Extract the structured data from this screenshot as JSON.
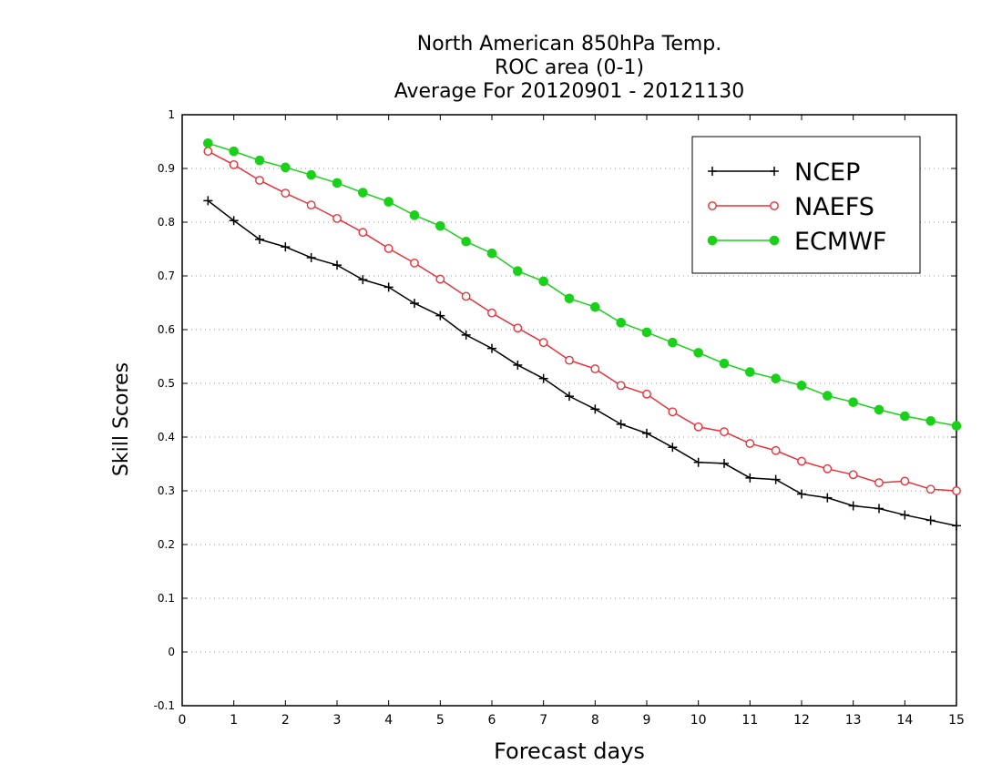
{
  "chart_data": {
    "type": "line",
    "title": [
      "North American 850hPa Temp.",
      "ROC area (0-1)",
      "Average For 20120901 - 20121130"
    ],
    "xlabel": "Forecast days",
    "ylabel": "Skill Scores",
    "xlim": [
      0,
      15
    ],
    "ylim": [
      -0.1,
      1
    ],
    "xticks": [
      "0",
      "1",
      "2",
      "3",
      "4",
      "5",
      "6",
      "7",
      "8",
      "9",
      "10",
      "11",
      "12",
      "13",
      "14",
      "15"
    ],
    "yticks": [
      "-0.1",
      "0",
      "0.1",
      "0.2",
      "0.3",
      "0.4",
      "0.5",
      "0.6",
      "0.7",
      "0.8",
      "0.9",
      "1"
    ],
    "grid": "horizontal dotted",
    "legend_position": "top-right",
    "x": [
      0.5,
      1,
      1.5,
      2,
      2.5,
      3,
      3.5,
      4,
      4.5,
      5,
      5.5,
      6,
      6.5,
      7,
      7.5,
      8,
      8.5,
      9,
      9.5,
      10,
      10.5,
      11,
      11.5,
      12,
      12.5,
      13,
      13.5,
      14,
      14.5,
      15
    ],
    "series": [
      {
        "name": "NCEP",
        "color": "#000000",
        "marker": "plus",
        "values": [
          0.84,
          0.803,
          0.768,
          0.754,
          0.734,
          0.72,
          0.693,
          0.679,
          0.649,
          0.626,
          0.59,
          0.565,
          0.534,
          0.509,
          0.476,
          0.452,
          0.424,
          0.407,
          0.381,
          0.353,
          0.351,
          0.324,
          0.321,
          0.294,
          0.287,
          0.272,
          0.267,
          0.255,
          0.245,
          0.235
        ]
      },
      {
        "name": "NAEFS",
        "color": "#e8313a",
        "marker": "open-circle",
        "values": [
          0.932,
          0.907,
          0.878,
          0.854,
          0.832,
          0.807,
          0.781,
          0.751,
          0.724,
          0.694,
          0.662,
          0.631,
          0.603,
          0.576,
          0.543,
          0.527,
          0.496,
          0.48,
          0.447,
          0.419,
          0.41,
          0.388,
          0.375,
          0.355,
          0.341,
          0.33,
          0.315,
          0.318,
          0.303,
          0.3
        ]
      },
      {
        "name": "ECMWF",
        "color": "#19d119",
        "marker": "filled-circle",
        "values": [
          0.947,
          0.932,
          0.915,
          0.902,
          0.888,
          0.873,
          0.855,
          0.838,
          0.813,
          0.793,
          0.764,
          0.742,
          0.709,
          0.69,
          0.658,
          0.642,
          0.613,
          0.595,
          0.576,
          0.557,
          0.537,
          0.521,
          0.509,
          0.496,
          0.477,
          0.465,
          0.451,
          0.439,
          0.43,
          0.421
        ]
      }
    ]
  }
}
